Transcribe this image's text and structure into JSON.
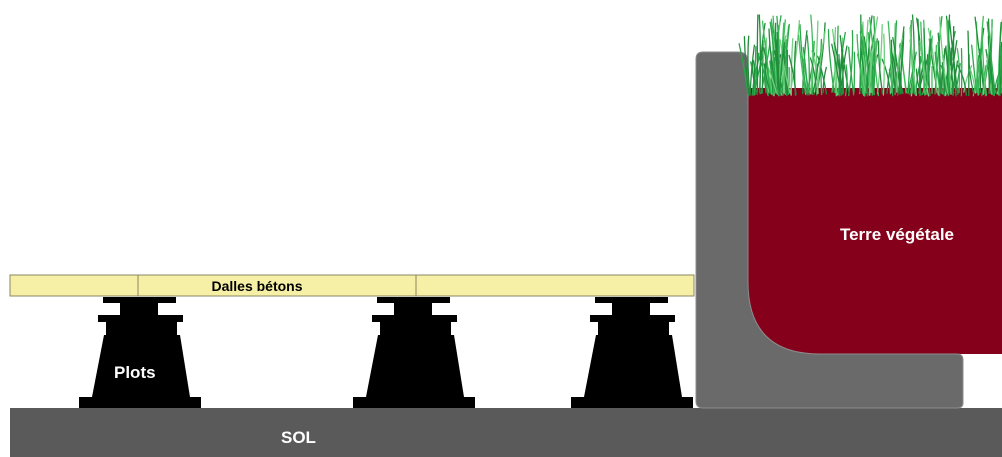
{
  "labels": {
    "slabs": "Dalles bétons",
    "pedestals": "Plots",
    "soil": "Terre végétale",
    "ground": "SOL"
  },
  "colors": {
    "background": "#ffffff",
    "slab_fill": "#f5f0a6",
    "slab_stroke": "#8a8460",
    "pedestal": "#000000",
    "ground": "#5a5a5a",
    "planter_wall": "#6a6a6a",
    "soil": "#85001a",
    "grass": "#2aa84a",
    "label_light": "#ffffff",
    "label_dark": "#000000"
  }
}
